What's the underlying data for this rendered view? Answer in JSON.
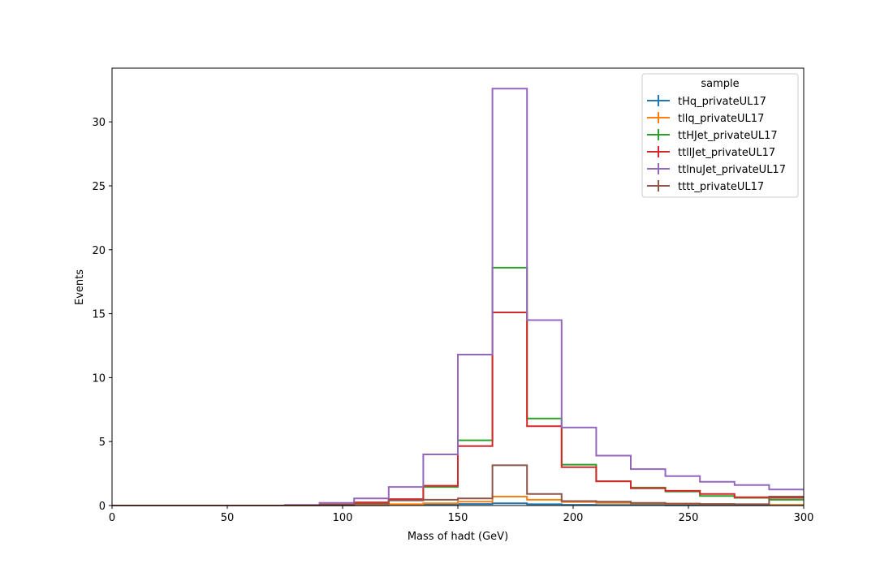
{
  "chart_data": {
    "type": "step",
    "xlabel": "Mass of hadt (GeV)",
    "ylabel": "Events",
    "xlim": [
      0,
      300
    ],
    "ylim": [
      0,
      34.2
    ],
    "xticks": [
      0,
      50,
      100,
      150,
      200,
      250,
      300
    ],
    "yticks": [
      0,
      5,
      10,
      15,
      20,
      25,
      30
    ],
    "grid": false,
    "legend": {
      "title": "sample",
      "position": "top-right"
    },
    "bin_edges": [
      0,
      15,
      30,
      45,
      60,
      75,
      90,
      105,
      120,
      135,
      150,
      165,
      180,
      195,
      210,
      225,
      240,
      255,
      270,
      285,
      300
    ],
    "series": [
      {
        "name": "tHq_privateUL17",
        "color": "#1f77b4",
        "values": [
          0,
          0,
          0,
          0,
          0,
          0,
          0,
          0.02,
          0.04,
          0.08,
          0.12,
          0.18,
          0.1,
          0.06,
          0.04,
          0.03,
          0.02,
          0.02,
          0.01,
          0.01
        ]
      },
      {
        "name": "tllq_privateUL17",
        "color": "#ff7f0e",
        "values": [
          0,
          0,
          0,
          0,
          0,
          0,
          0.02,
          0.05,
          0.1,
          0.18,
          0.3,
          0.7,
          0.45,
          0.28,
          0.2,
          0.16,
          0.12,
          0.1,
          0.08,
          0.06
        ]
      },
      {
        "name": "ttHJet_privateUL17",
        "color": "#2ca02c",
        "values": [
          0,
          0,
          0,
          0,
          0,
          0.03,
          0.08,
          0.2,
          0.45,
          1.45,
          5.1,
          18.6,
          6.8,
          3.2,
          1.9,
          1.4,
          1.1,
          0.75,
          0.6,
          0.45
        ]
      },
      {
        "name": "ttllJet_privateUL17",
        "color": "#d62728",
        "values": [
          0,
          0,
          0,
          0,
          0,
          0.03,
          0.08,
          0.25,
          0.5,
          1.55,
          4.65,
          15.1,
          6.2,
          3.0,
          1.9,
          1.35,
          1.15,
          0.9,
          0.65,
          0.6
        ]
      },
      {
        "name": "ttlnuJet_privateUL17",
        "color": "#9467bd",
        "values": [
          0,
          0,
          0,
          0,
          0,
          0.05,
          0.2,
          0.55,
          1.45,
          4.0,
          11.8,
          32.6,
          14.5,
          6.1,
          3.9,
          2.85,
          2.3,
          1.85,
          1.6,
          1.25
        ]
      },
      {
        "name": "tttt_privateUL17",
        "color": "#8c564b",
        "values": [
          0,
          0,
          0,
          0,
          0,
          0,
          0.05,
          0.15,
          0.4,
          0.45,
          0.55,
          3.15,
          0.9,
          0.35,
          0.3,
          0.2,
          0.15,
          0.12,
          0.1,
          0.7
        ]
      }
    ]
  }
}
